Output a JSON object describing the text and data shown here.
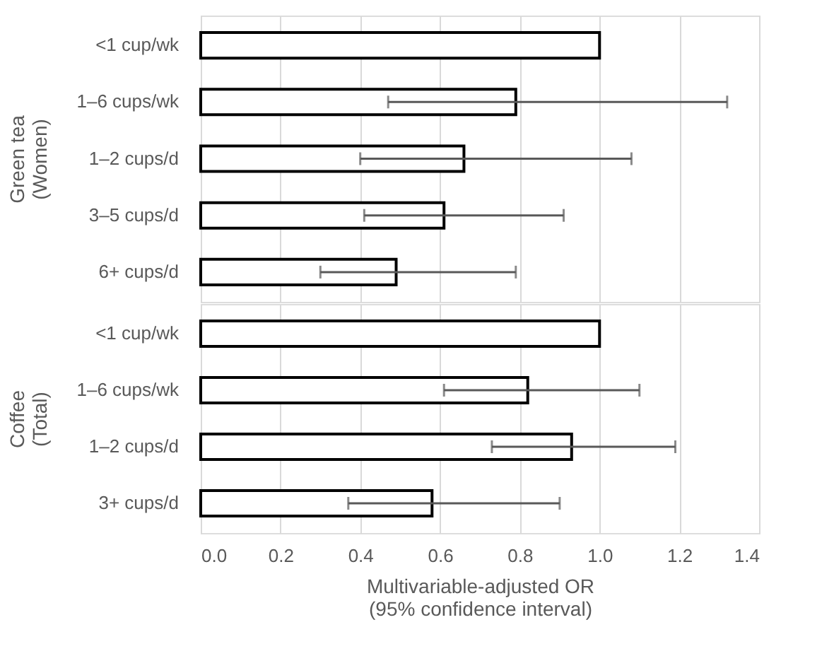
{
  "chart_data": [
    {
      "type": "bar",
      "orientation": "horizontal",
      "ylabel": "Green tea\n(Women)",
      "categories": [
        "<1 cup/wk",
        "1–6 cups/wk",
        "1–2 cups/d",
        "3–5 cups/d",
        "6+ cups/d"
      ],
      "values": [
        1.0,
        0.79,
        0.66,
        0.61,
        0.49
      ],
      "errors": [
        null,
        [
          0.47,
          1.32
        ],
        [
          0.4,
          1.08
        ],
        [
          0.41,
          0.91
        ],
        [
          0.3,
          0.79
        ]
      ],
      "color": "#ffffff",
      "xlim": [
        0,
        1.4
      ],
      "xticks": [
        0.0,
        0.2,
        0.4,
        0.6,
        0.8,
        1.0,
        1.2,
        1.4
      ],
      "grid": "x",
      "tick_labels": "y"
    },
    {
      "type": "bar",
      "orientation": "horizontal",
      "ylabel": "Coffee\n(Total)",
      "xlabel": "Multivariable-adjusted OR\n(95% confidence interval)",
      "categories": [
        "<1 cup/wk",
        "1–6 cups/wk",
        "1–2 cups/d",
        "3+ cups/d"
      ],
      "values": [
        1.0,
        0.82,
        0.93,
        0.58
      ],
      "errors": [
        null,
        [
          0.61,
          1.1
        ],
        [
          0.73,
          1.19
        ],
        [
          0.37,
          0.9
        ]
      ],
      "color": "#ffffff",
      "xlim": [
        0,
        1.4
      ],
      "xticks": [
        {
          "value": 0.0,
          "label": "0.0"
        },
        {
          "value": 0.2,
          "label": "0.2"
        },
        {
          "value": 0.4,
          "label": "0.4"
        },
        {
          "value": 0.6,
          "label": "0.6"
        },
        {
          "value": 0.8,
          "label": "0.8"
        },
        {
          "value": 1.0,
          "label": "1.0"
        },
        {
          "value": 1.2,
          "label": "1.2"
        },
        {
          "value": 1.4,
          "label": "1.4"
        }
      ],
      "grid": "x"
    }
  ]
}
